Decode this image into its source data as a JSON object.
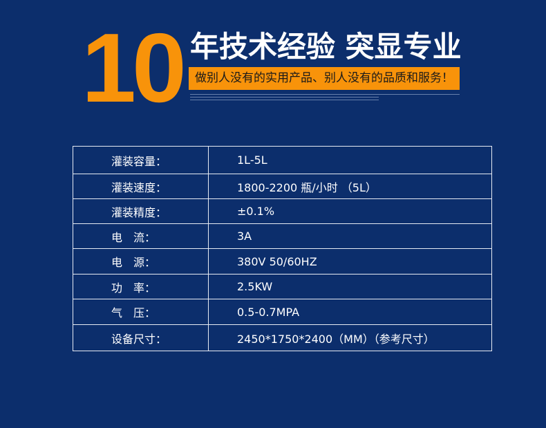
{
  "banner": {
    "number": "10",
    "headline": "年技术经验 突显专业",
    "slogan": "做别人没有的实用产品、别人没有的品质和服务！",
    "accent": "#f8930a",
    "background": "#0c2e6c"
  },
  "specs": [
    {
      "label": "灌装容量：",
      "value": "1L-5L"
    },
    {
      "label": "灌装速度：",
      "value": "1800-2200 瓶/小时 （5L）"
    },
    {
      "label": "灌装精度：",
      "value": "±0.1%"
    },
    {
      "label": "电　流：",
      "value": "3A"
    },
    {
      "label": "电　源：",
      "value": "380V 50/60HZ"
    },
    {
      "label": "功　率：",
      "value": "2.5KW"
    },
    {
      "label": "气　压：",
      "value": "0.5-0.7MPA"
    },
    {
      "label": "设备尺寸：",
      "value": "2450*1750*2400（MM）（参考尺寸）"
    }
  ]
}
